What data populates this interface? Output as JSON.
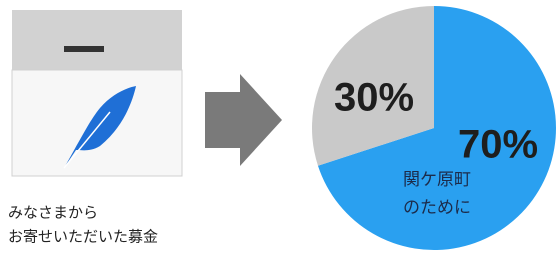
{
  "caption": [
    "みなさまから",
    "お寄せいただいた募金"
  ],
  "chart_data": {
    "type": "pie",
    "values": [
      70,
      30
    ],
    "value_labels": [
      "70%",
      "30%"
    ],
    "colors": [
      "#2aa0f0",
      "#c9c9c9"
    ],
    "annotations": [
      "関ケ原町",
      "のために"
    ]
  }
}
